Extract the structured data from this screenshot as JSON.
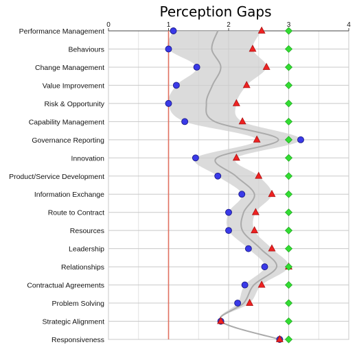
{
  "chart_data": {
    "type": "scatter",
    "title": "Perception Gaps",
    "xlim": [
      0,
      4
    ],
    "x_ticks": [
      "0",
      "1",
      "2",
      "3",
      "4"
    ],
    "reference_line_x": 1,
    "grid": true,
    "categories": [
      "Performance Management",
      "Behaviours",
      "Change Management",
      "Value Improvement",
      "Risk & Opportunity",
      "Capability Management",
      "Governance Reporting",
      "Innovation",
      "Product/Service Development",
      "Information Exchange",
      "Route to Contract",
      "Resources",
      "Leadership",
      "Relationships",
      "Contractual Agreements",
      "Problem Solving",
      "Strategic Alignment",
      "Responsiveness"
    ],
    "series": [
      {
        "marker": "circle",
        "color": "#3a3ae8",
        "values": [
          1.08,
          1.0,
          1.47,
          1.13,
          1.0,
          1.27,
          3.2,
          1.45,
          1.82,
          2.22,
          2.0,
          2.0,
          2.33,
          2.6,
          2.27,
          2.15,
          1.87,
          2.85
        ]
      },
      {
        "marker": "triangle",
        "color": "#ee2222",
        "values": [
          2.55,
          2.4,
          2.63,
          2.3,
          2.13,
          2.23,
          2.47,
          2.13,
          2.5,
          2.72,
          2.45,
          2.43,
          2.72,
          3.0,
          2.55,
          2.35,
          1.87,
          2.85
        ]
      },
      {
        "marker": "diamond",
        "color": "#33dd33",
        "values": [
          3,
          3,
          3,
          3,
          3,
          3,
          3,
          3,
          3,
          3,
          3,
          3,
          3,
          3,
          3,
          3,
          3,
          3
        ]
      }
    ],
    "band": {
      "color": "#cfcfcf",
      "mean": [
        1.82,
        1.72,
        1.87,
        1.73,
        1.63,
        1.77,
        2.83,
        1.8,
        2.12,
        2.43,
        2.25,
        2.23,
        2.53,
        2.8,
        2.42,
        2.25,
        1.87,
        2.85
      ],
      "low": [
        1.08,
        1.0,
        1.47,
        1.13,
        1.0,
        1.27,
        2.47,
        1.45,
        1.82,
        2.22,
        2.0,
        2.0,
        2.33,
        2.6,
        2.27,
        2.15,
        1.87,
        2.85
      ],
      "high": [
        2.55,
        2.4,
        2.63,
        2.3,
        2.13,
        2.23,
        3.2,
        2.13,
        2.5,
        2.72,
        2.45,
        2.43,
        2.72,
        3.0,
        2.55,
        2.35,
        1.87,
        2.85
      ]
    }
  }
}
